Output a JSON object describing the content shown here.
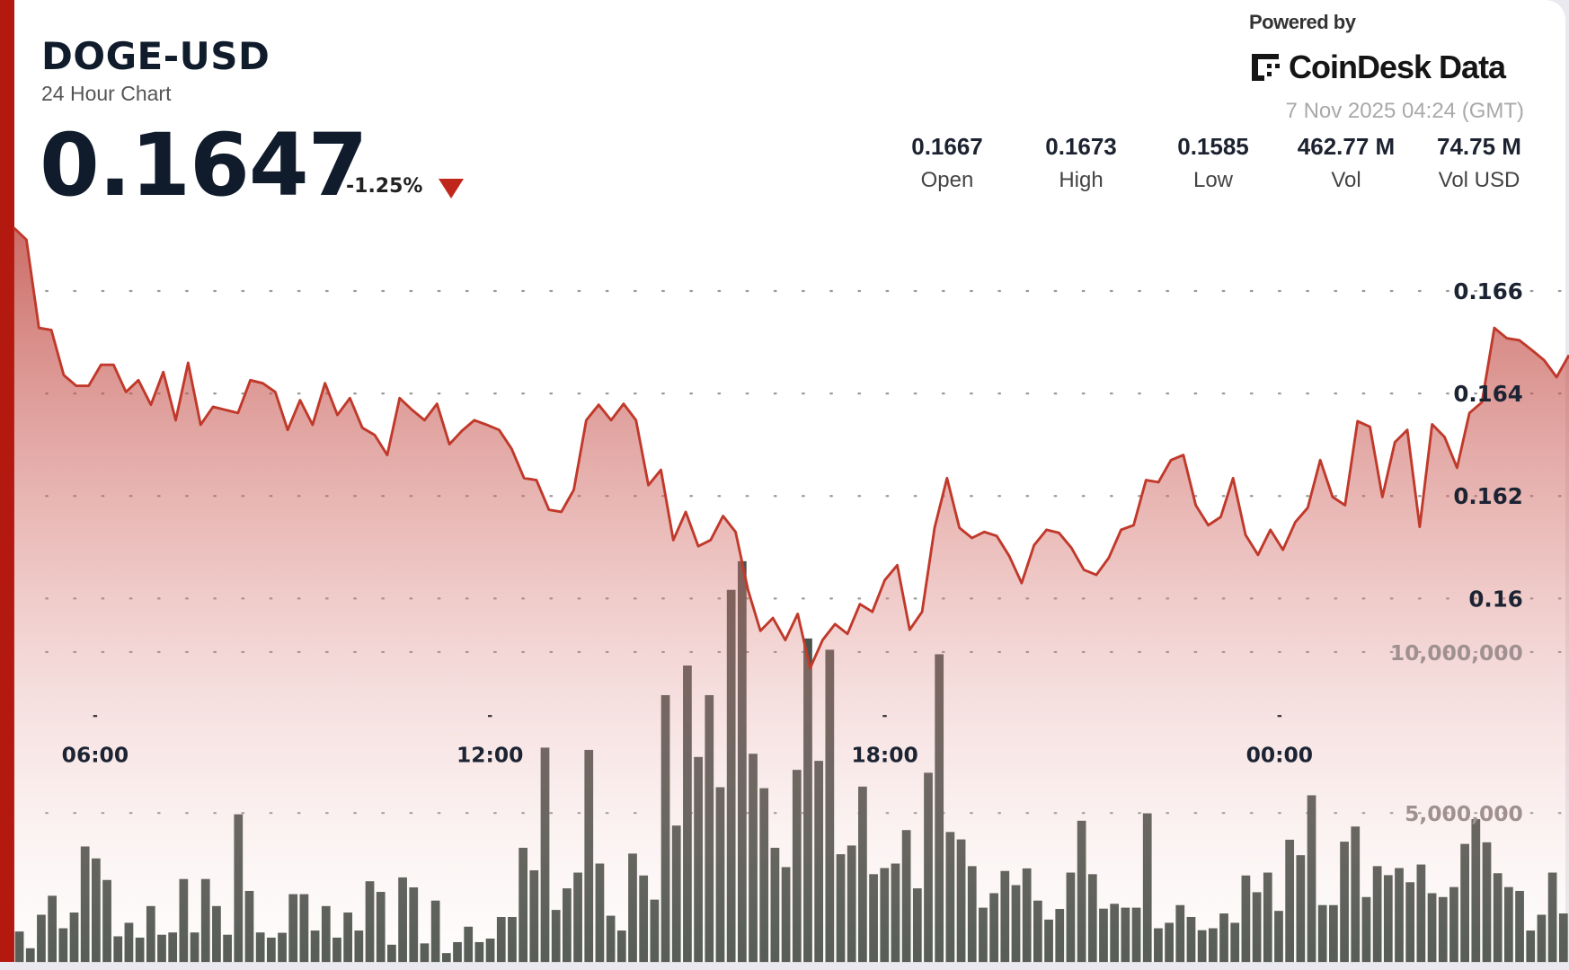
{
  "header": {
    "symbol": "DOGE-USD",
    "subtitle": "24 Hour Chart",
    "price": "0.1647",
    "change": "-1.25%",
    "change_direction": "down",
    "down_color": "#c0271b"
  },
  "branding": {
    "powered_by": "Powered by",
    "logo_text": "CoinDesk Data",
    "timestamp": "7 Nov 2025 04:24 (GMT)"
  },
  "stats": [
    {
      "value": "0.1667",
      "label": "Open"
    },
    {
      "value": "0.1673",
      "label": "High"
    },
    {
      "value": "0.1585",
      "label": "Low"
    },
    {
      "value": "462.77 M",
      "label": "Vol"
    },
    {
      "value": "74.75 M",
      "label": "Vol USD"
    }
  ],
  "colors": {
    "accent": "#b3190f",
    "line": "#c0392b",
    "volume_bar": "#4a524c"
  },
  "chart_data": {
    "type": "line",
    "title": "",
    "x_range": [
      "04:46",
      "04:24"
    ],
    "x_ticks": [
      "06:00",
      "12:00",
      "18:00",
      "00:00"
    ],
    "price_ticks": [
      "0.166",
      "0.164",
      "0.162",
      "0.16"
    ],
    "price_tick_values": [
      0.166,
      0.164,
      0.162,
      0.16
    ],
    "volume_ticks": [
      "10,000,000",
      "5,000,000"
    ],
    "volume_tick_values": [
      10000000,
      5000000
    ],
    "grid": true,
    "price_series": [
      0.16723,
      0.167,
      0.16528,
      0.16524,
      0.16436,
      0.16415,
      0.16415,
      0.16456,
      0.16456,
      0.16403,
      0.16426,
      0.16378,
      0.16442,
      0.16348,
      0.1646,
      0.16339,
      0.16374,
      0.16368,
      0.16362,
      0.16426,
      0.1642,
      0.16403,
      0.16329,
      0.16387,
      0.16339,
      0.1642,
      0.16358,
      0.16391,
      0.16333,
      0.16319,
      0.1628,
      0.16391,
      0.16368,
      0.16348,
      0.1638,
      0.16301,
      0.16327,
      0.16348,
      0.16339,
      0.16329,
      0.16292,
      0.16235,
      0.16231,
      0.16173,
      0.16169,
      0.16212,
      0.16348,
      0.16378,
      0.16348,
      0.1638,
      0.16348,
      0.16221,
      0.16251,
      0.16114,
      0.16169,
      0.16102,
      0.16114,
      0.16161,
      0.1613,
      0.16017,
      0.15937,
      0.15962,
      0.15919,
      0.1597,
      0.15864,
      0.15919,
      0.1595,
      0.15931,
      0.15989,
      0.15974,
      0.16036,
      0.16065,
      0.15939,
      0.15974,
      0.16138,
      0.16235,
      0.16138,
      0.16118,
      0.1613,
      0.16122,
      0.16083,
      0.1603,
      0.16104,
      0.16134,
      0.16128,
      0.16099,
      0.16056,
      0.16046,
      0.16079,
      0.16134,
      0.16143,
      0.16231,
      0.16227,
      0.1627,
      0.1628,
      0.16182,
      0.16143,
      0.16159,
      0.16235,
      0.16124,
      0.16085,
      0.16134,
      0.16095,
      0.16149,
      0.16177,
      0.1627,
      0.16198,
      0.16182,
      0.16346,
      0.16335,
      0.16198,
      0.16305,
      0.16329,
      0.1614,
      0.1634,
      0.16315,
      0.16255,
      0.16362,
      0.16383,
      0.16528,
      0.16508,
      0.16504,
      0.16485,
      0.16465,
      0.16432,
      0.16475
    ],
    "volume_series": [
      1320000,
      800000,
      1840000,
      2430000,
      1420000,
      1910000,
      3960000,
      3590000,
      2920000,
      1170000,
      1590000,
      1130000,
      2110000,
      1220000,
      1290000,
      2950000,
      1290000,
      2950000,
      2110000,
      1220000,
      4960000,
      2580000,
      1290000,
      1130000,
      1280000,
      2480000,
      2480000,
      1350000,
      2110000,
      1130000,
      1910000,
      1350000,
      2880000,
      2550000,
      910000,
      3000000,
      2690000,
      950000,
      2280000,
      650000,
      990000,
      1470000,
      990000,
      1100000,
      1770000,
      1770000,
      3920000,
      3220000,
      7030000,
      1990000,
      2660000,
      3150000,
      6960000,
      3430000,
      1810000,
      1350000,
      3740000,
      3060000,
      2310000,
      8660000,
      4610000,
      9580000,
      6740000,
      8660000,
      5800000,
      11930000,
      12820000,
      6840000,
      5770000,
      3920000,
      3320000,
      6340000,
      10420000,
      6620000,
      10070000,
      3720000,
      3990000,
      5820000,
      3100000,
      3290000,
      3430000,
      4470000,
      2660000,
      6250000,
      9930000,
      4410000,
      4180000,
      3350000,
      2060000,
      2510000,
      3200000,
      2760000,
      3280000,
      2280000,
      1690000,
      2020000,
      3150000,
      4760000,
      3100000,
      2030000,
      2180000,
      2060000,
      2060000,
      4990000,
      1420000,
      1590000,
      2140000,
      1770000,
      1360000,
      1420000,
      1880000,
      1590000,
      3060000,
      2540000,
      3150000,
      1960000,
      4170000,
      3690000,
      5550000,
      2140000,
      2140000,
      4110000,
      4580000,
      2390000,
      3350000,
      3070000,
      3290000,
      2850000,
      3400000,
      2510000,
      2390000,
      2700000,
      4040000,
      4810000,
      4090000,
      3130000,
      2700000,
      2580000,
      1350000,
      1840000,
      3150000,
      1880000
    ]
  }
}
